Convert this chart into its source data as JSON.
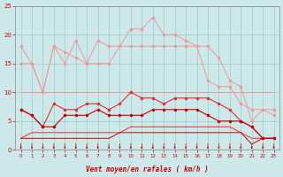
{
  "x": [
    0,
    1,
    2,
    3,
    4,
    5,
    6,
    7,
    8,
    9,
    10,
    11,
    12,
    13,
    14,
    15,
    16,
    17,
    18,
    19,
    20,
    21,
    22,
    23
  ],
  "rafales_top": [
    18,
    15,
    10,
    18,
    15,
    19,
    15,
    19,
    18,
    18,
    21,
    21,
    23,
    20,
    20,
    19,
    18,
    18,
    16,
    12,
    11,
    5,
    7,
    6
  ],
  "vent_top": [
    15,
    15,
    10,
    18,
    17,
    16,
    15,
    15,
    15,
    18,
    18,
    18,
    18,
    18,
    18,
    18,
    18,
    12,
    11,
    11,
    8,
    7,
    7,
    7
  ],
  "vent_plateau": [
    10,
    10,
    10,
    10,
    10,
    10,
    10,
    10,
    10,
    10,
    10,
    10,
    10,
    10,
    10,
    10,
    10,
    10,
    10,
    10,
    10,
    10,
    10,
    10
  ],
  "rafales_mid": [
    7,
    6,
    4,
    8,
    7,
    7,
    8,
    8,
    7,
    8,
    10,
    9,
    9,
    8,
    9,
    9,
    9,
    9,
    8,
    7,
    5,
    4,
    2,
    2
  ],
  "vent_mid": [
    7,
    6,
    4,
    4,
    6,
    6,
    6,
    7,
    6,
    6,
    6,
    6,
    7,
    7,
    7,
    7,
    7,
    6,
    5,
    5,
    5,
    4,
    2,
    2
  ],
  "vent_low": [
    2,
    3,
    3,
    3,
    3,
    3,
    3,
    3,
    3,
    3,
    4,
    4,
    4,
    4,
    4,
    4,
    4,
    4,
    4,
    4,
    3,
    2,
    2,
    2
  ],
  "rafales_low": [
    2,
    2,
    2,
    2,
    2,
    2,
    2,
    2,
    2,
    3,
    3,
    3,
    3,
    3,
    3,
    3,
    3,
    3,
    3,
    3,
    3,
    1,
    2,
    2
  ],
  "xlabel": "Vent moyen/en rafales ( km/h )",
  "ylim": [
    0,
    25
  ],
  "xlim": [
    -0.5,
    23.5
  ],
  "yticks": [
    0,
    5,
    10,
    15,
    20,
    25
  ],
  "xticks": [
    0,
    1,
    2,
    3,
    4,
    5,
    6,
    7,
    8,
    9,
    10,
    11,
    12,
    13,
    14,
    15,
    16,
    17,
    18,
    19,
    20,
    21,
    22,
    23
  ],
  "bg_color": "#cce8e8",
  "grid_color": "#99cccc",
  "color_light_pink": "#f09898",
  "color_medium_red": "#e03030",
  "color_dark_red": "#cc0000",
  "color_tick": "#cc0000"
}
